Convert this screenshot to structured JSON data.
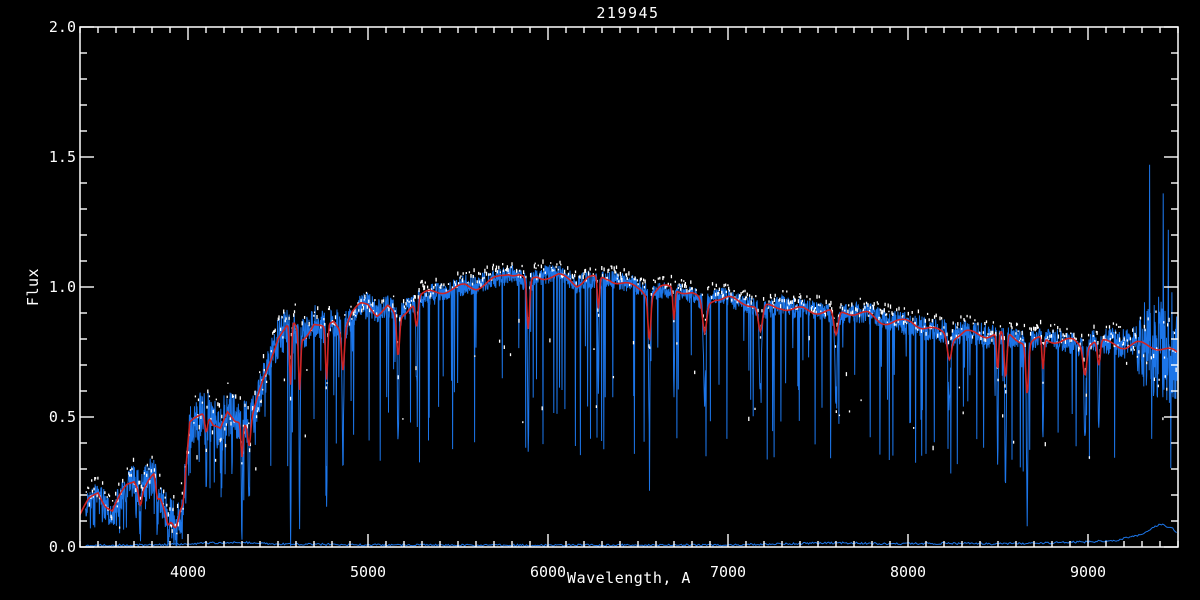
{
  "chart_data": {
    "type": "line",
    "title": "219945",
    "xlabel": "Wavelength, A",
    "ylabel": "Flux",
    "xlim": [
      3400,
      9500
    ],
    "ylim": [
      0.0,
      2.0
    ],
    "grid": false,
    "xticks": {
      "major": [
        4000,
        5000,
        6000,
        7000,
        8000,
        9000
      ],
      "minor_step": 100
    },
    "yticks": {
      "values": [
        0.0,
        0.5,
        1.0,
        1.5,
        2.0
      ],
      "labels": [
        "0.0",
        "0.5",
        "1.0",
        "1.5",
        "2.0"
      ],
      "minor_step": 0.1
    },
    "colors": {
      "background": "#000000",
      "axis": "#ffffff",
      "observed": "#1c75e8",
      "overlay_dots": "#ffffff",
      "template_fit": "#d02424"
    },
    "series_legend": [
      {
        "name": "observed spectrum",
        "style": "solid noisy line",
        "color": "#1c75e8"
      },
      {
        "name": "comparison spectrum",
        "style": "white dots",
        "color": "#ffffff"
      },
      {
        "name": "template fit",
        "style": "smooth line",
        "color": "#d02424"
      },
      {
        "name": "error spectrum",
        "style": "thin line near zero",
        "color": "#1c75e8"
      }
    ],
    "continuum": [
      [
        3400,
        0.13
      ],
      [
        3450,
        0.18
      ],
      [
        3500,
        0.21
      ],
      [
        3540,
        0.16
      ],
      [
        3580,
        0.13
      ],
      [
        3620,
        0.18
      ],
      [
        3660,
        0.23
      ],
      [
        3700,
        0.26
      ],
      [
        3740,
        0.22
      ],
      [
        3780,
        0.26
      ],
      [
        3810,
        0.28
      ],
      [
        3840,
        0.2
      ],
      [
        3880,
        0.13
      ],
      [
        3920,
        0.1
      ],
      [
        3950,
        0.12
      ],
      [
        3980,
        0.22
      ],
      [
        4010,
        0.46
      ],
      [
        4060,
        0.5
      ],
      [
        4100,
        0.53
      ],
      [
        4140,
        0.47
      ],
      [
        4180,
        0.45
      ],
      [
        4220,
        0.52
      ],
      [
        4260,
        0.5
      ],
      [
        4300,
        0.5
      ],
      [
        4340,
        0.46
      ],
      [
        4380,
        0.55
      ],
      [
        4420,
        0.64
      ],
      [
        4460,
        0.72
      ],
      [
        4500,
        0.8
      ],
      [
        4540,
        0.83
      ],
      [
        4580,
        0.86
      ],
      [
        4640,
        0.81
      ],
      [
        4700,
        0.87
      ],
      [
        4760,
        0.84
      ],
      [
        4810,
        0.87
      ],
      [
        4860,
        0.83
      ],
      [
        4910,
        0.89
      ],
      [
        4960,
        0.92
      ],
      [
        5000,
        0.93
      ],
      [
        5050,
        0.9
      ],
      [
        5110,
        0.93
      ],
      [
        5170,
        0.88
      ],
      [
        5230,
        0.93
      ],
      [
        5290,
        0.96
      ],
      [
        5350,
        0.97
      ],
      [
        5420,
        0.98
      ],
      [
        5480,
        0.99
      ],
      [
        5540,
        1.01
      ],
      [
        5600,
        1.01
      ],
      [
        5660,
        1.02
      ],
      [
        5720,
        1.03
      ],
      [
        5780,
        1.05
      ],
      [
        5840,
        1.04
      ],
      [
        5890,
        1.01
      ],
      [
        5940,
        1.04
      ],
      [
        6000,
        1.05
      ],
      [
        6060,
        1.05
      ],
      [
        6120,
        1.03
      ],
      [
        6160,
        1.01
      ],
      [
        6220,
        1.03
      ],
      [
        6280,
        1.02
      ],
      [
        6340,
        1.03
      ],
      [
        6400,
        1.02
      ],
      [
        6460,
        1.01
      ],
      [
        6520,
        1.0
      ],
      [
        6563,
        0.97
      ],
      [
        6620,
        0.99
      ],
      [
        6680,
        0.99
      ],
      [
        6740,
        0.98
      ],
      [
        6800,
        0.97
      ],
      [
        6870,
        0.94
      ],
      [
        6930,
        0.97
      ],
      [
        7000,
        0.96
      ],
      [
        7060,
        0.94
      ],
      [
        7120,
        0.93
      ],
      [
        7180,
        0.91
      ],
      [
        7240,
        0.92
      ],
      [
        7300,
        0.93
      ],
      [
        7360,
        0.92
      ],
      [
        7420,
        0.92
      ],
      [
        7480,
        0.91
      ],
      [
        7540,
        0.9
      ],
      [
        7600,
        0.89
      ],
      [
        7660,
        0.9
      ],
      [
        7720,
        0.9
      ],
      [
        7780,
        0.9
      ],
      [
        7840,
        0.88
      ],
      [
        7900,
        0.87
      ],
      [
        7960,
        0.86
      ],
      [
        8020,
        0.86
      ],
      [
        8080,
        0.84
      ],
      [
        8140,
        0.83
      ],
      [
        8200,
        0.83
      ],
      [
        8260,
        0.82
      ],
      [
        8320,
        0.83
      ],
      [
        8380,
        0.82
      ],
      [
        8440,
        0.81
      ],
      [
        8500,
        0.81
      ],
      [
        8560,
        0.81
      ],
      [
        8620,
        0.8
      ],
      [
        8680,
        0.79
      ],
      [
        8740,
        0.81
      ],
      [
        8800,
        0.8
      ],
      [
        8860,
        0.79
      ],
      [
        8920,
        0.78
      ],
      [
        8970,
        0.76
      ],
      [
        9030,
        0.79
      ],
      [
        9090,
        0.79
      ],
      [
        9150,
        0.79
      ],
      [
        9210,
        0.78
      ],
      [
        9270,
        0.78
      ],
      [
        9330,
        0.77
      ],
      [
        9390,
        0.76
      ],
      [
        9450,
        0.75
      ],
      [
        9500,
        0.74
      ]
    ],
    "absorption_lines": [
      [
        3735,
        0.7,
        4
      ],
      [
        3830,
        0.6,
        4
      ],
      [
        3890,
        0.65,
        4
      ],
      [
        3933,
        0.75,
        5
      ],
      [
        3970,
        0.6,
        4
      ],
      [
        4101,
        0.5,
        4
      ],
      [
        4300,
        0.9,
        3
      ],
      [
        4340,
        0.5,
        4
      ],
      [
        4570,
        0.95,
        3
      ],
      [
        4620,
        0.88,
        3
      ],
      [
        4770,
        0.82,
        3
      ],
      [
        4861,
        0.58,
        4
      ],
      [
        5167,
        0.55,
        4
      ],
      [
        5270,
        0.35,
        4
      ],
      [
        5890,
        0.62,
        4
      ],
      [
        6280,
        0.4,
        3
      ],
      [
        6563,
        0.55,
        4
      ],
      [
        6700,
        0.4,
        3
      ],
      [
        6870,
        0.4,
        6
      ],
      [
        7180,
        0.35,
        6
      ],
      [
        7600,
        0.35,
        6
      ],
      [
        8230,
        0.35,
        6
      ],
      [
        8498,
        0.6,
        3
      ],
      [
        8542,
        0.72,
        4
      ],
      [
        8662,
        0.83,
        4
      ],
      [
        8750,
        0.5,
        3
      ],
      [
        8983,
        0.45,
        5
      ],
      [
        9060,
        0.4,
        4
      ]
    ],
    "noise_amplitude": [
      [
        3400,
        0.045
      ],
      [
        3600,
        0.06
      ],
      [
        3800,
        0.075
      ],
      [
        4000,
        0.09
      ],
      [
        4200,
        0.1
      ],
      [
        4400,
        0.09
      ],
      [
        4600,
        0.07
      ],
      [
        4800,
        0.06
      ],
      [
        5200,
        0.045
      ],
      [
        5600,
        0.04
      ],
      [
        6200,
        0.035
      ],
      [
        7000,
        0.035
      ],
      [
        7600,
        0.04
      ],
      [
        8000,
        0.045
      ],
      [
        8300,
        0.05
      ],
      [
        8700,
        0.04
      ],
      [
        9000,
        0.045
      ],
      [
        9250,
        0.06
      ],
      [
        9320,
        0.18
      ],
      [
        9400,
        0.22
      ],
      [
        9500,
        0.18
      ]
    ],
    "dip_probability": [
      [
        3400,
        0.12
      ],
      [
        4500,
        0.07
      ],
      [
        5500,
        0.045
      ],
      [
        7000,
        0.045
      ],
      [
        8000,
        0.085
      ],
      [
        8900,
        0.05
      ],
      [
        9200,
        0.03
      ],
      [
        9500,
        0.03
      ]
    ],
    "emission_spikes": [
      [
        9341,
        1.47
      ],
      [
        9418,
        1.36
      ],
      [
        9446,
        1.22
      ],
      [
        9466,
        0.98
      ]
    ],
    "error_spectrum": [
      [
        3400,
        0.006
      ],
      [
        3800,
        0.008
      ],
      [
        4000,
        0.012
      ],
      [
        4150,
        0.016
      ],
      [
        4300,
        0.018
      ],
      [
        4450,
        0.012
      ],
      [
        5000,
        0.008
      ],
      [
        5500,
        0.007
      ],
      [
        6000,
        0.007
      ],
      [
        6500,
        0.007
      ],
      [
        7000,
        0.008
      ],
      [
        7300,
        0.012
      ],
      [
        7600,
        0.016
      ],
      [
        7900,
        0.012
      ],
      [
        8200,
        0.014
      ],
      [
        8500,
        0.012
      ],
      [
        8800,
        0.016
      ],
      [
        9000,
        0.02
      ],
      [
        9150,
        0.025
      ],
      [
        9300,
        0.05
      ],
      [
        9400,
        0.09
      ],
      [
        9470,
        0.07
      ],
      [
        9500,
        0.05
      ]
    ]
  }
}
